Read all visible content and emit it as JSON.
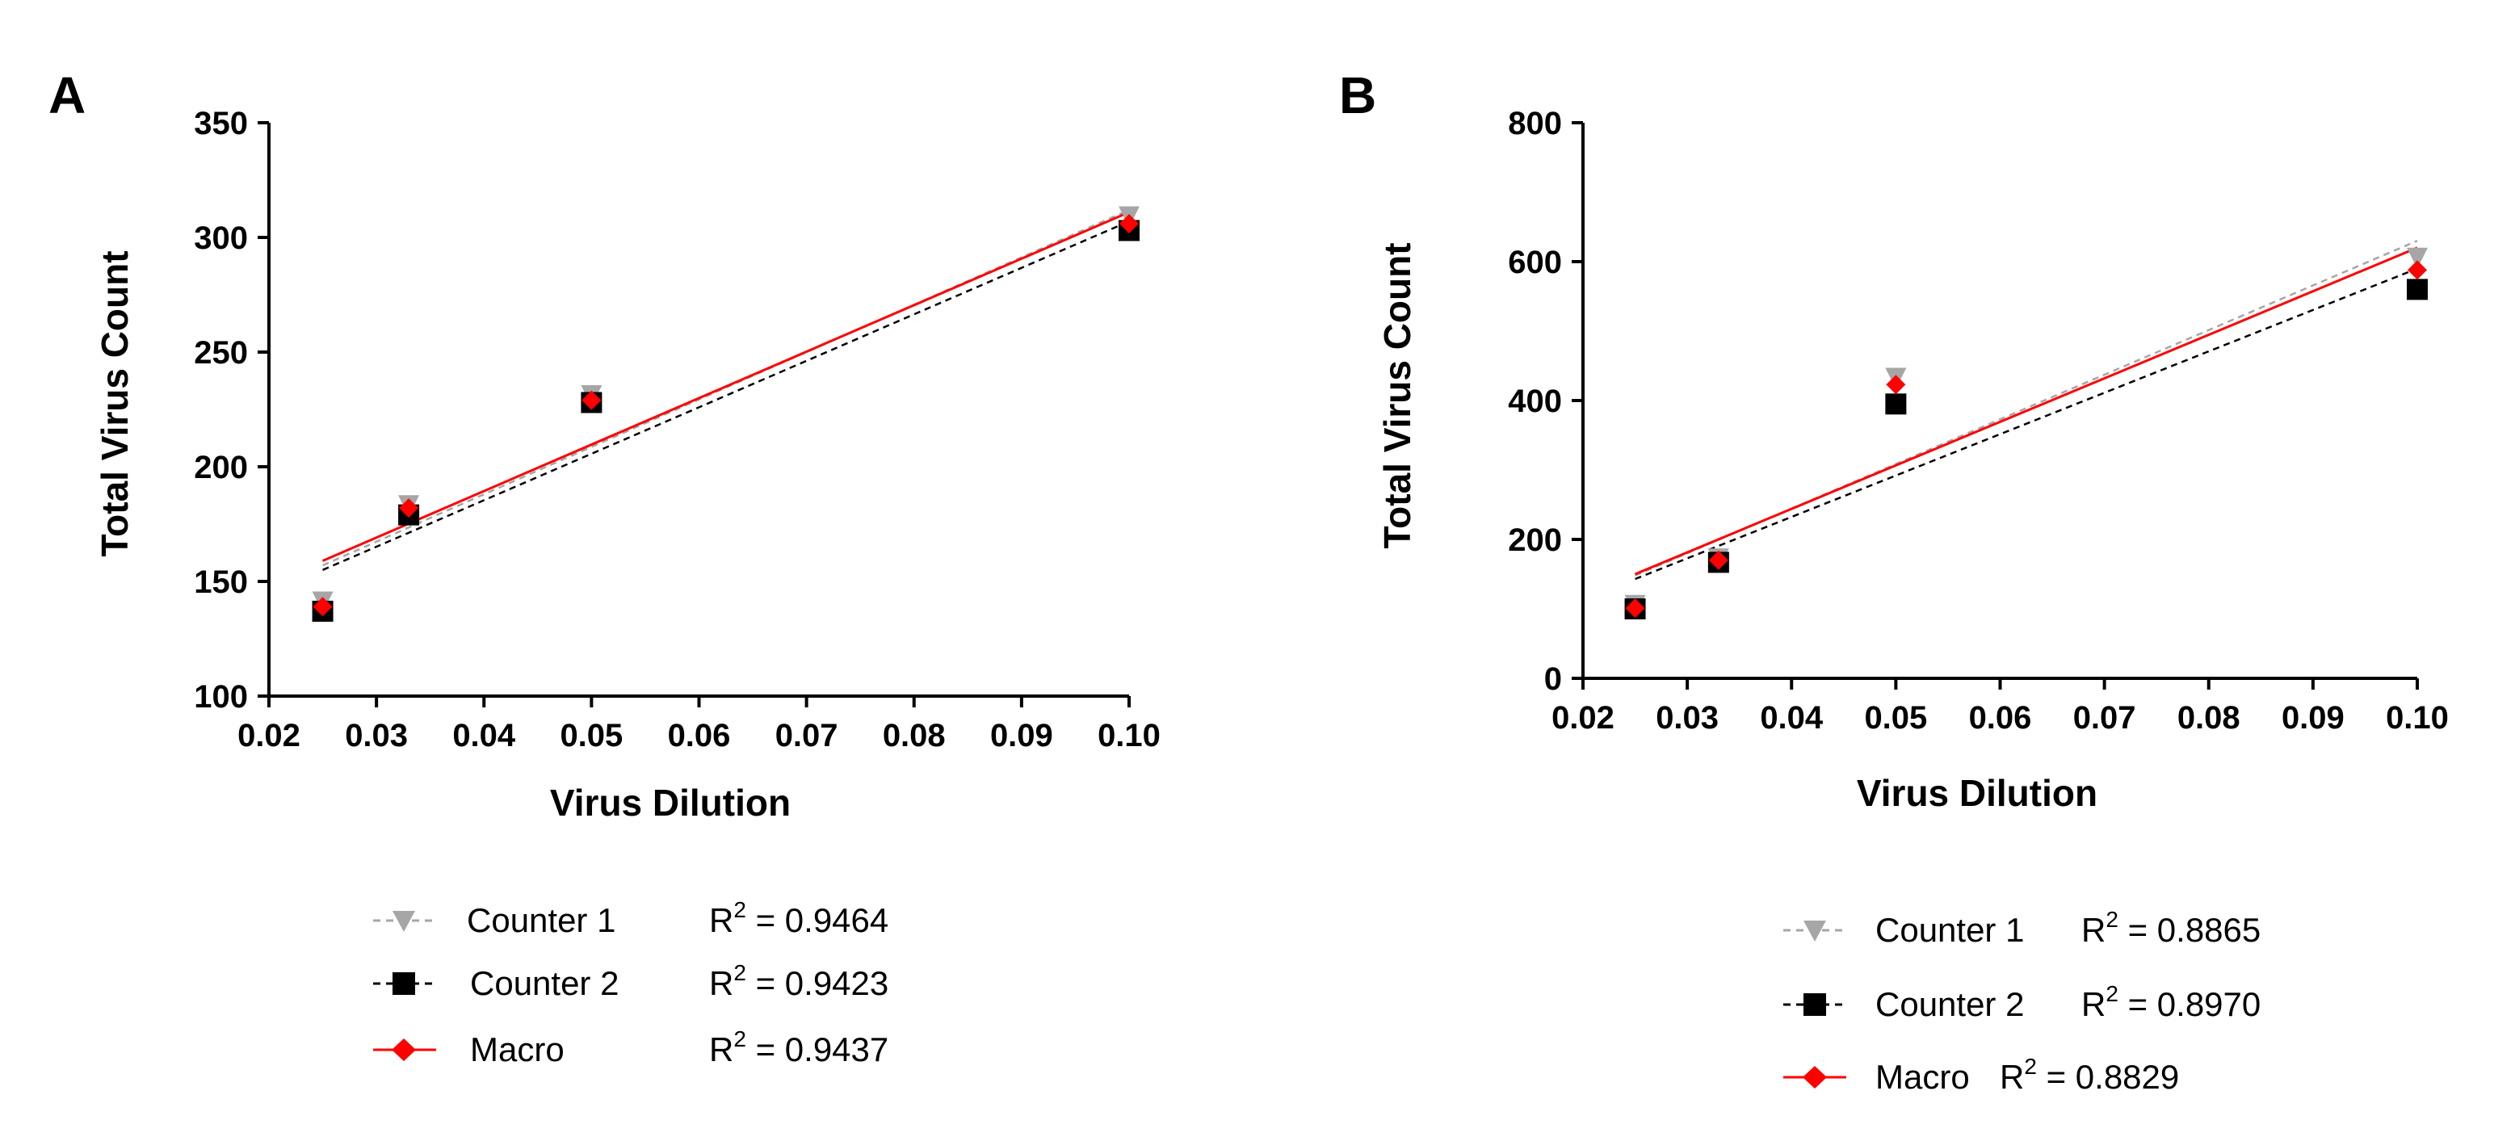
{
  "chart_data": [
    {
      "panel": "A",
      "type": "scatter",
      "xlabel": "Virus Dilution",
      "ylabel": "Total Virus Count",
      "xlim": [
        0.02,
        0.1
      ],
      "ylim": [
        100,
        350
      ],
      "xticks": [
        "0.02",
        "0.03",
        "0.04",
        "0.05",
        "0.06",
        "0.07",
        "0.08",
        "0.09",
        "0.10"
      ],
      "yticks": [
        "100",
        "150",
        "200",
        "250",
        "300",
        "350"
      ],
      "series": [
        {
          "name": "Counter 1",
          "r2_label": "R",
          "r2_sup": "2",
          "r2_value": " = 0.9464",
          "color": "#a6a6a6",
          "marker": "triangle-down",
          "line_style": "dashed",
          "x": [
            0.025,
            0.033,
            0.05,
            0.1
          ],
          "y": [
            141,
            183,
            231,
            309
          ],
          "fit": [
            [
              0.025,
              157
            ],
            [
              0.1,
              312
            ]
          ]
        },
        {
          "name": "Counter 2",
          "r2_label": "R",
          "r2_sup": "2",
          "r2_value": " = 0.9423",
          "color": "#000000",
          "marker": "square",
          "line_style": "dashed",
          "x": [
            0.025,
            0.033,
            0.05,
            0.1
          ],
          "y": [
            137,
            179,
            228,
            303
          ],
          "fit": [
            [
              0.025,
              155
            ],
            [
              0.1,
              307
            ]
          ]
        },
        {
          "name": "Macro",
          "r2_label": "R",
          "r2_sup": "2",
          "r2_value": " = 0.9437",
          "color": "#ff0000",
          "marker": "diamond",
          "line_style": "solid",
          "x": [
            0.025,
            0.033,
            0.05,
            0.1
          ],
          "y": [
            139,
            182,
            229,
            306
          ],
          "fit": [
            [
              0.025,
              159
            ],
            [
              0.1,
              311
            ]
          ]
        }
      ]
    },
    {
      "panel": "B",
      "type": "scatter",
      "xlabel": "Virus Dilution",
      "ylabel": "Total Virus Count",
      "xlim": [
        0.02,
        0.1
      ],
      "ylim": [
        0,
        800
      ],
      "xticks": [
        "0.02",
        "0.03",
        "0.04",
        "0.05",
        "0.06",
        "0.07",
        "0.08",
        "0.09",
        "0.10"
      ],
      "yticks": [
        "0",
        "200",
        "400",
        "600",
        "800"
      ],
      "series": [
        {
          "name": "Counter 1",
          "r2_label": "R",
          "r2_sup": "2",
          "r2_value": " = 0.8865",
          "color": "#a6a6a6",
          "marker": "triangle-down",
          "line_style": "dashed",
          "x": [
            0.025,
            0.033,
            0.05,
            0.1
          ],
          "y": [
            105,
            172,
            432,
            605
          ],
          "fit": [
            [
              0.025,
              148
            ],
            [
              0.1,
              630
            ]
          ]
        },
        {
          "name": "Counter 2",
          "r2_label": "R",
          "r2_sup": "2",
          "r2_value": " = 0.8970",
          "color": "#000000",
          "marker": "square",
          "line_style": "dashed",
          "x": [
            0.025,
            0.033,
            0.05,
            0.1
          ],
          "y": [
            100,
            167,
            395,
            560
          ],
          "fit": [
            [
              0.025,
              143
            ],
            [
              0.1,
              590
            ]
          ]
        },
        {
          "name": "Macro",
          "r2_label": "R",
          "r2_sup": "2",
          "r2_value": " = 0.8829",
          "color": "#ff0000",
          "marker": "diamond",
          "line_style": "solid",
          "x": [
            0.025,
            0.033,
            0.05,
            0.1
          ],
          "y": [
            101,
            170,
            423,
            588
          ],
          "fit": [
            [
              0.025,
              150
            ],
            [
              0.1,
              620
            ]
          ]
        }
      ]
    }
  ]
}
